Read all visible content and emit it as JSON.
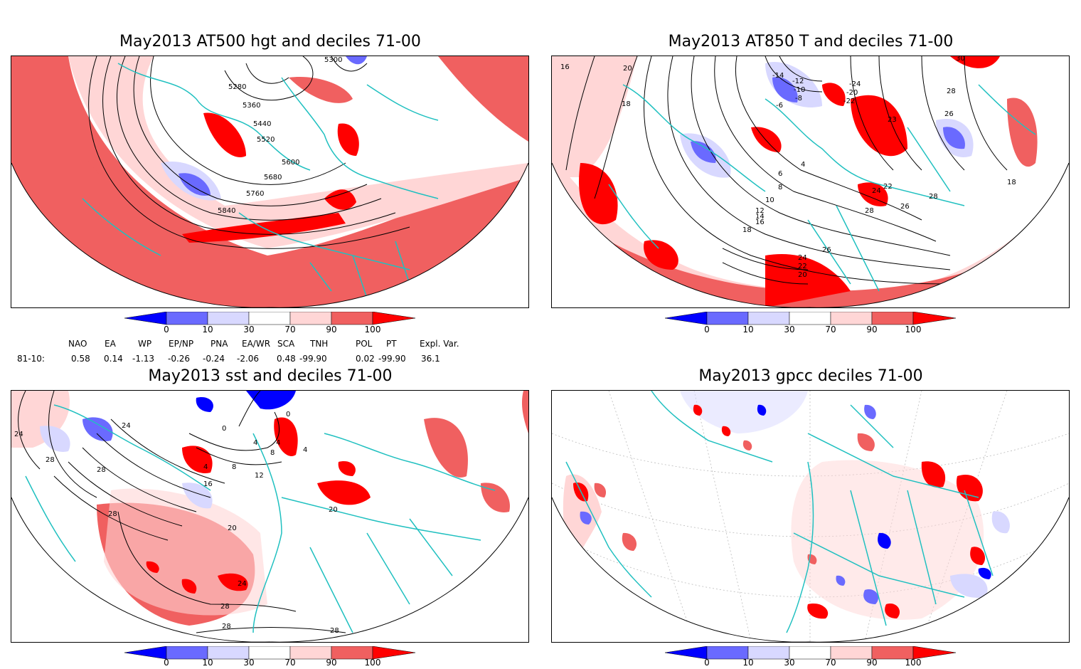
{
  "panels": [
    {
      "id": "hgt500",
      "title": "May2013 AT500 hgt and deciles 71-00",
      "contour_labels": [
        "5300",
        "5280",
        "5360",
        "5440",
        "5520",
        "5600",
        "5680",
        "5760",
        "5840"
      ]
    },
    {
      "id": "t850",
      "title": "May2013 AT850 T and deciles 71-00",
      "contour_labels": [
        "16",
        "20",
        "18",
        "-14",
        "-12",
        "-10",
        "-8",
        "-6",
        "-24",
        "-20",
        "-22",
        "4",
        "6",
        "8",
        "10",
        "12",
        "14",
        "16",
        "18",
        "24",
        "22",
        "28",
        "26",
        "28",
        "26",
        "23",
        "18",
        "24",
        "22",
        "20",
        "26",
        "28",
        "30"
      ]
    },
    {
      "id": "sst",
      "title": "May2013 sst and deciles 71-00",
      "contour_labels": [
        "24",
        "24",
        "28",
        "28",
        "28",
        "0",
        "4",
        "4",
        "4",
        "8",
        "12",
        "16",
        "8",
        "4",
        "0",
        "20",
        "20",
        "24",
        "28",
        "28",
        "28"
      ]
    },
    {
      "id": "gpcc",
      "title": "May2013 gpcc deciles 71-00",
      "contour_labels": []
    }
  ],
  "colorbar": {
    "labels": [
      "0",
      "10",
      "30",
      "70",
      "90",
      "100"
    ],
    "colors": [
      "#0000ff",
      "#6a6aff",
      "#d8d8ff",
      "#ffffff",
      "#ffd6d6",
      "#f06060",
      "#ff0000"
    ]
  },
  "indices": {
    "row_label": "81-10:",
    "items": [
      {
        "name": "NAO",
        "value": "0.58"
      },
      {
        "name": "EA",
        "value": "0.14"
      },
      {
        "name": "WP",
        "value": "-1.13"
      },
      {
        "name": "EP/NP",
        "value": "-0.26"
      },
      {
        "name": "PNA",
        "value": "-0.24"
      },
      {
        "name": "EA/WR",
        "value": "-2.06"
      },
      {
        "name": "SCA",
        "value": "0.48"
      },
      {
        "name": "TNH",
        "value": "-99.90"
      },
      {
        "name": "POL",
        "value": "0.02"
      },
      {
        "name": "PT",
        "value": "-99.90"
      },
      {
        "name": "Expl. Var.",
        "value": "36.1"
      }
    ]
  },
  "colors": {
    "coast": "#20c0c0",
    "red": "#ff0000",
    "mid_red": "#f06060",
    "light_red": "#ffd6d6",
    "blue": "#0000ff",
    "mid_blue": "#6a6aff",
    "light_blue": "#d8d8ff"
  }
}
